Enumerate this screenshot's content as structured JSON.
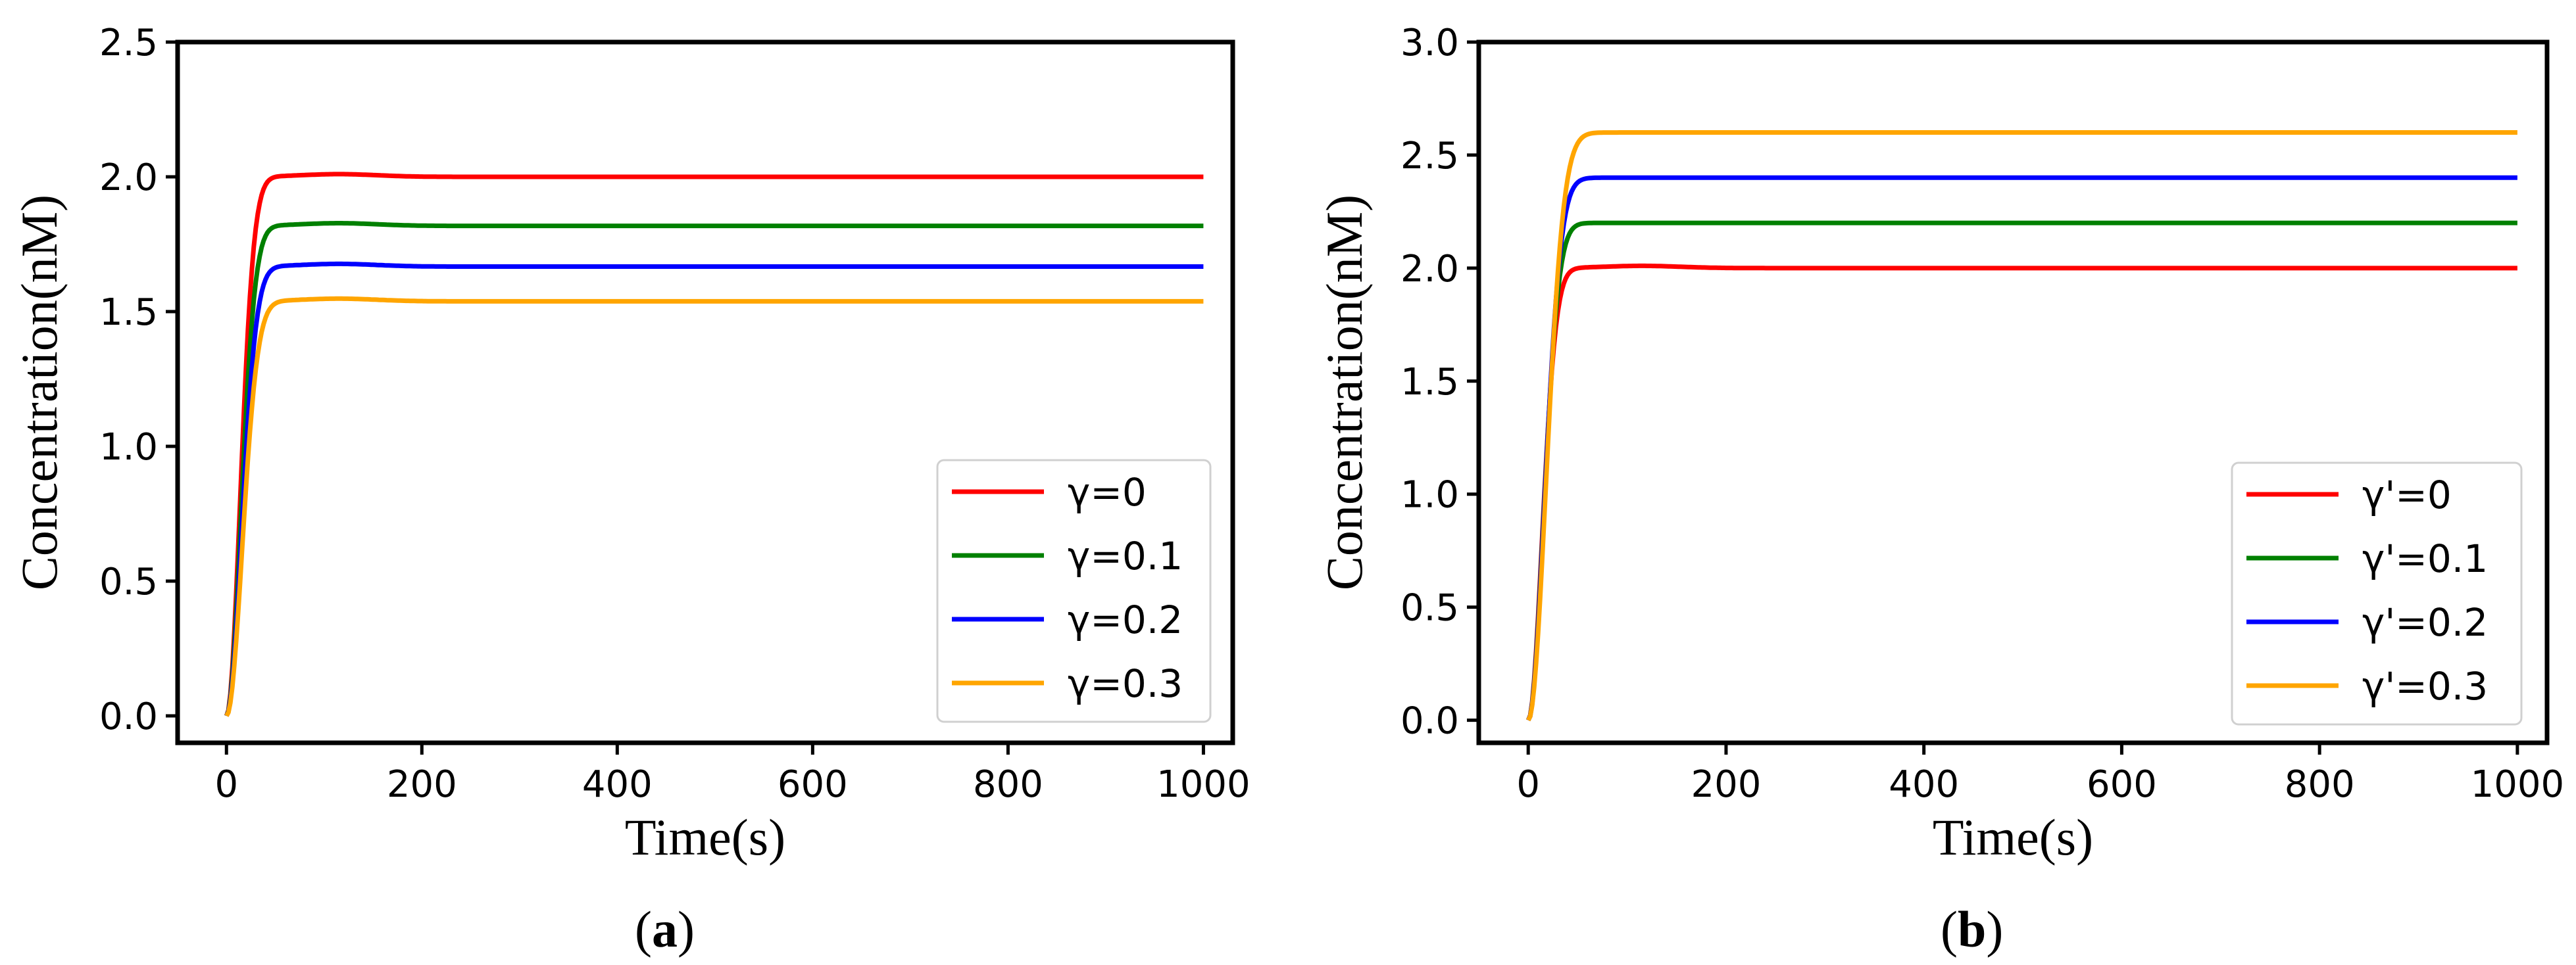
{
  "chart_data": [
    {
      "type": "line",
      "panel_label": "a",
      "xlabel": "Time(s)",
      "ylabel": "Concentration(nM)",
      "xlim": [
        -50,
        1030
      ],
      "ylim": [
        -0.1,
        2.5
      ],
      "xticks": [
        "0",
        "200",
        "400",
        "600",
        "800",
        "1000"
      ],
      "xtick_values": [
        0,
        200,
        400,
        600,
        800,
        1000
      ],
      "yticks": [
        "0.0",
        "0.5",
        "1.0",
        "1.5",
        "2.0",
        "2.5"
      ],
      "ytick_values": [
        0.0,
        0.5,
        1.0,
        1.5,
        2.0,
        2.5
      ],
      "legend_position": "lower-right",
      "series": [
        {
          "name": "γ=0",
          "color": "#ff0000",
          "steady": 2.0,
          "overshoot": 0.01,
          "rate": 0.0026
        },
        {
          "name": "γ=0.1",
          "color": "#008000",
          "steady": 1.818,
          "overshoot": 0.01,
          "rate": 0.0024
        },
        {
          "name": "γ=0.2",
          "color": "#0000ff",
          "steady": 1.667,
          "overshoot": 0.01,
          "rate": 0.0022
        },
        {
          "name": "γ=0.3",
          "color": "#ffa500",
          "steady": 1.538,
          "overshoot": 0.01,
          "rate": 0.002
        }
      ]
    },
    {
      "type": "line",
      "panel_label": "b",
      "xlabel": "Time(s)",
      "ylabel": "Concentration(nM)",
      "xlim": [
        -50,
        1030
      ],
      "ylim": [
        -0.1,
        3.0
      ],
      "xticks": [
        "0",
        "200",
        "400",
        "600",
        "800",
        "1000"
      ],
      "xtick_values": [
        0,
        200,
        400,
        600,
        800,
        1000
      ],
      "yticks": [
        "0.0",
        "0.5",
        "1.0",
        "1.5",
        "2.0",
        "2.5",
        "3.0"
      ],
      "ytick_values": [
        0.0,
        0.5,
        1.0,
        1.5,
        2.0,
        2.5,
        3.0
      ],
      "legend_position": "lower-right",
      "series": [
        {
          "name": "γ'=0",
          "color": "#ff0000",
          "steady": 2.0,
          "overshoot": 0.01,
          "rate": 0.0026
        },
        {
          "name": "γ'=0.1",
          "color": "#008000",
          "steady": 2.2,
          "overshoot": 0.0,
          "rate": 0.0022
        },
        {
          "name": "γ'=0.2",
          "color": "#0000ff",
          "steady": 2.4,
          "overshoot": 0.0,
          "rate": 0.0019
        },
        {
          "name": "γ'=0.3",
          "color": "#ffa500",
          "steady": 2.6,
          "overshoot": 0.0,
          "rate": 0.0016
        }
      ]
    }
  ]
}
